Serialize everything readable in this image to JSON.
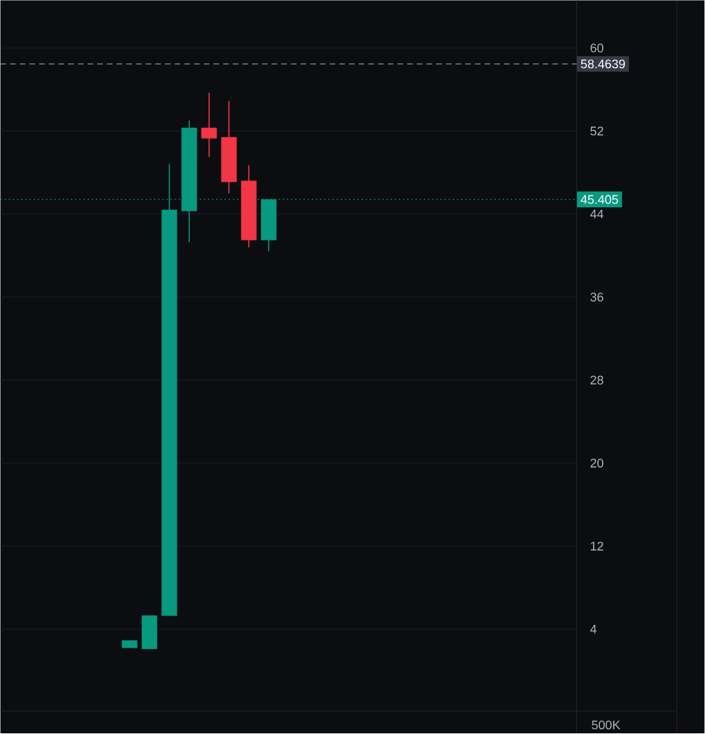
{
  "chart_data": {
    "type": "candlestick",
    "categories": [
      null,
      null,
      null,
      null,
      null,
      null,
      null,
      null,
      null,
      null,
      null,
      null,
      null,
      null,
      null,
      null,
      null,
      null,
      null,
      null,
      null,
      null,
      null,
      null,
      null,
      null,
      null,
      null,
      null
    ],
    "ohlc": [
      null,
      null,
      null,
      null,
      null,
      null,
      [
        2.2,
        2.9,
        2.2,
        2.9
      ],
      [
        2.1,
        5.3,
        2.1,
        5.3
      ],
      [
        5.3,
        48.8,
        5.3,
        44.4
      ],
      [
        44.3,
        53.0,
        41.3,
        52.3
      ],
      [
        52.3,
        55.7,
        49.5,
        51.3
      ],
      [
        51.4,
        54.9,
        46.0,
        47.1
      ],
      [
        47.2,
        48.7,
        40.8,
        41.5
      ],
      [
        41.5,
        45.405,
        40.4,
        45.405
      ],
      null,
      null,
      null,
      null,
      null,
      null,
      null,
      null,
      null,
      null,
      null,
      null,
      null,
      null,
      null
    ],
    "colors": [
      null,
      null,
      null,
      null,
      null,
      null,
      "#089981",
      "#089981",
      "#089981",
      "#089981",
      "#f23645",
      "#f23645",
      "#f23645",
      "#089981",
      null,
      null,
      null,
      null,
      null,
      null,
      null,
      null,
      null,
      null,
      null,
      null,
      null,
      null,
      null
    ],
    "ylim": [
      -3.9,
      64.6
    ],
    "yticks": [
      4,
      12,
      20,
      28,
      36,
      44,
      52,
      60
    ],
    "grid": "y",
    "tick_labels": "y",
    "ref_lines": [
      {
        "axis": "y",
        "value": 58.4639,
        "label": "58.4639",
        "color": "#b2b5be",
        "line_style": "dashed"
      },
      {
        "axis": "y",
        "value": 45.405,
        "label": "45.405",
        "color": "#089981",
        "line_style": "dotted"
      }
    ],
    "annotations": [
      "500K"
    ]
  }
}
